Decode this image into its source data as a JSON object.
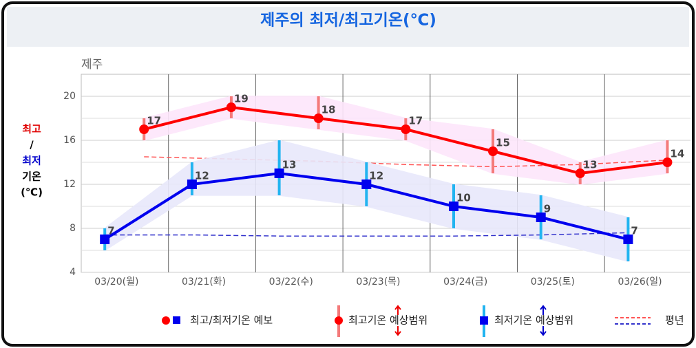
{
  "chart_data": {
    "type": "line-range",
    "title": "제주의 최저/최고기온(℃)",
    "region": "제주",
    "y_label_lines": [
      {
        "text": "최고",
        "color": "#e00000"
      },
      {
        "text": "/",
        "color": "#000000"
      },
      {
        "text": "최저",
        "color": "#0000cc"
      },
      {
        "text": "기온",
        "color": "#000000"
      },
      {
        "text": "(℃)",
        "color": "#000000"
      }
    ],
    "categories": [
      "03/20(월)",
      "03/21(화)",
      "03/22(수)",
      "03/23(목)",
      "03/24(금)",
      "03/25(토)",
      "03/26(일)"
    ],
    "ylim": [
      4,
      22
    ],
    "yticks": [
      4,
      8,
      12,
      16,
      20
    ],
    "y_minor_ticks": [
      6,
      10,
      14,
      18
    ],
    "grid": true,
    "series": [
      {
        "key": "high",
        "color": "#ff0000",
        "range_color": "#f47a7a",
        "band_color": "#fde6fb",
        "normal_color": "#ff5555",
        "offset": 0.22,
        "values": [
          17,
          19,
          18,
          17,
          15,
          13,
          14
        ],
        "range_low": [
          16,
          18,
          17,
          16,
          13,
          12,
          13
        ],
        "range_high": [
          18,
          20,
          20,
          18,
          17,
          14,
          16
        ],
        "normal": [
          14.5,
          14.3,
          14.1,
          13.8,
          13.6,
          13.8,
          14.2
        ]
      },
      {
        "key": "low",
        "color": "#0000ee",
        "range_color": "#22b4f0",
        "band_color": "#e8e8fb",
        "normal_color": "#3333cc",
        "offset": -0.23,
        "values": [
          7,
          12,
          13,
          12,
          10,
          9,
          7
        ],
        "range_low": [
          6,
          11,
          11,
          10,
          8,
          7,
          5
        ],
        "range_high": [
          8,
          14,
          16,
          14,
          12,
          11,
          9
        ],
        "normal": [
          7.4,
          7.4,
          7.3,
          7.3,
          7.3,
          7.4,
          7.6
        ]
      }
    ],
    "legend": [
      "최고/최저기온 예보",
      "최고기온 예상범위",
      "최저기온 예상범위",
      "평년"
    ]
  }
}
